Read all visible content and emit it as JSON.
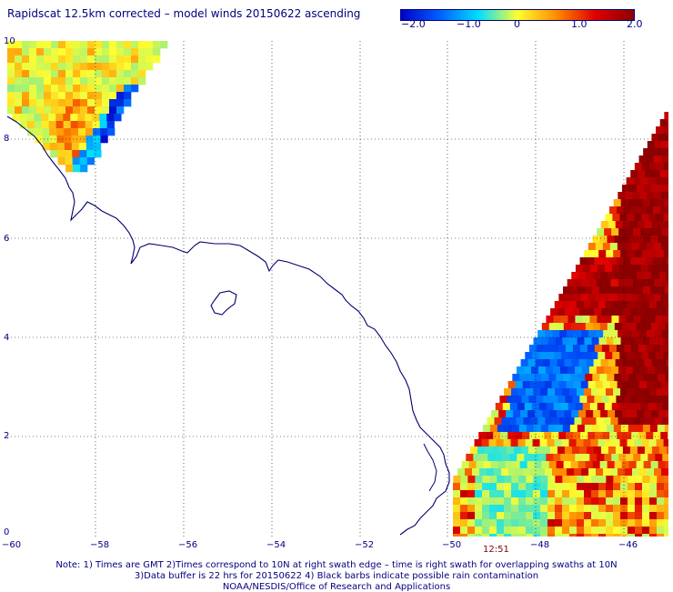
{
  "title": "Rapidscat 12.5km corrected – model winds 20150622 ascending",
  "colorbar": {
    "ticks": [
      "−2.0",
      "−1.0",
      "0",
      "1.0",
      "2.0"
    ],
    "stops": [
      "#0000c8",
      "#0060ff",
      "#00dfff",
      "#ffff30",
      "#ff8c00",
      "#e00000",
      "#8b0000"
    ]
  },
  "lat_labels": [
    "10",
    "8",
    "6",
    "4",
    "2",
    "0"
  ],
  "lon_labels": [
    "−60",
    "−58",
    "−56",
    "−54",
    "−52",
    "−50",
    "−48",
    "−46"
  ],
  "swath_time": "12:51",
  "notes": [
    "Note: 1) Times are GMT 2)Times correspond to 10N at right swath edge – time is right swath for overlapping swaths at 10N",
    "3)Data buffer is 22 hrs for 20150622 4) Black barbs indicate possible rain contamination",
    "NOAA/NESDIS/Office of Research and Applications"
  ],
  "colors": {
    "text": "#000080",
    "coast": "#000070",
    "grid": "#000000",
    "time_label": "#800000"
  }
}
